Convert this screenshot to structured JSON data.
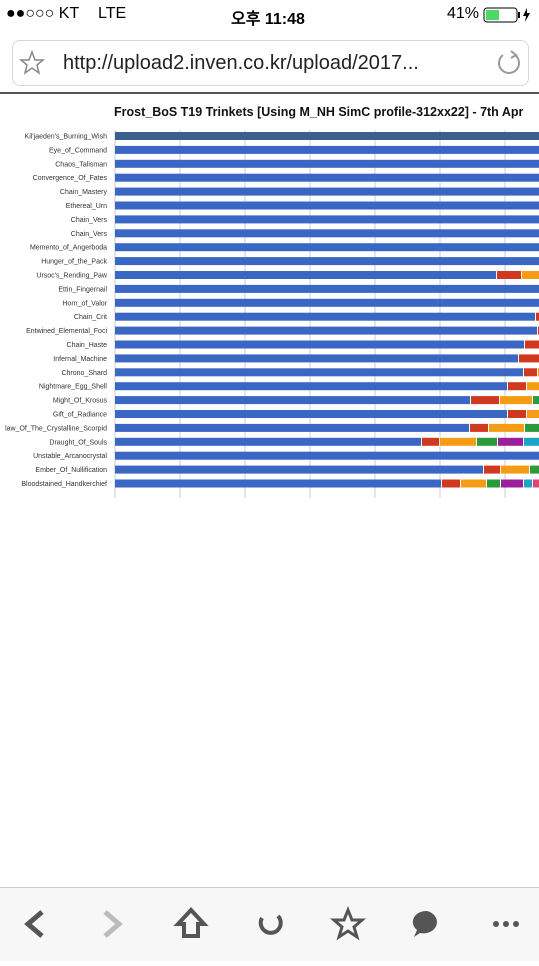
{
  "status_bar": {
    "carrier": "●●○○○ KT",
    "network": "LTE",
    "time": "오후 11:48",
    "battery": "41%"
  },
  "address_bar": {
    "url": "http://upload2.inven.co.kr/upload/2017..."
  },
  "chart": {
    "title": "Frost_BoS T19 Trinkets [Using M_NH SimC profile-312xx22] - 7th Apr",
    "labels": [
      "Kil'jaeden's_Burning_Wish",
      "Eye_of_Command",
      "Chaos_Talisman",
      "Convergence_Of_Fates",
      "Chain_Mastery",
      "Ethereal_Urn",
      "Chain_Vers",
      "Chain_Vers",
      "Memento_of_Angerboda",
      "Hunger_of_the_Pack",
      "Ursoc's_Rending_Paw",
      "Ettin_Fingernail",
      "Horn_of_Valor",
      "Chain_Crit",
      "Entwined_Elemental_Foci",
      "Chain_Haste",
      "Infernal_Machine",
      "Chrono_Shard",
      "Nightmare_Egg_Shell",
      "Might_Of_Krosus",
      "Gift_of_Radiance",
      "law_Of_The_Crystalline_Scorpid",
      "Draught_Of_Souls",
      "Unstable_Arcanocrystal",
      "Ember_Of_Nullification",
      "Bloodstained_Handkerchief"
    ]
  }
}
